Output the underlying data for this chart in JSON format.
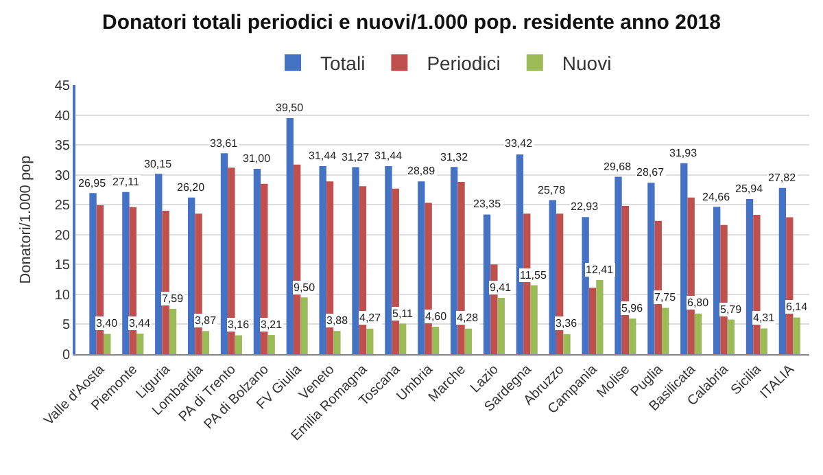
{
  "chart_data": {
    "type": "bar",
    "title": "Donatori totali periodici e nuovi/1.000 pop. residente anno 2018",
    "ylabel": "Donatori/1.000 pop",
    "categories": [
      "Valle d'Aosta",
      "Piemonte",
      "Liguria",
      "Lombardia",
      "PA di Trento",
      "PA di Bolzano",
      "FV Giulia",
      "Veneto",
      "Emilia Romagna",
      "Toscana",
      "Umbria",
      "Marche",
      "Lazio",
      "Sardegna",
      "Abruzzo",
      "Campania",
      "Molise",
      "Puglia",
      "Basilicata",
      "Calabria",
      "Sicilia",
      "ITALIA"
    ],
    "series": [
      {
        "name": "Totali",
        "color": "#4472c4",
        "values": [
          26.95,
          27.11,
          30.15,
          26.2,
          33.61,
          31.0,
          39.5,
          31.44,
          31.27,
          31.44,
          28.89,
          31.32,
          23.35,
          33.42,
          25.78,
          22.93,
          29.68,
          28.67,
          31.93,
          24.66,
          25.94,
          27.82
        ],
        "value_labels": [
          "26,95",
          "27,11",
          "30,15",
          "26,20",
          "33,61",
          "31,00",
          "39,50",
          "31,44",
          "31,27",
          "31,44",
          "28,89",
          "31,32",
          "23,35",
          "33,42",
          "25,78",
          "22,93",
          "29,68",
          "28,67",
          "31,93",
          "24,66",
          "25,94",
          "27,82"
        ]
      },
      {
        "name": "Periodici",
        "color": "#c0504d",
        "values": [
          24.9,
          24.6,
          24.0,
          23.5,
          31.2,
          28.5,
          31.7,
          28.9,
          28.1,
          27.7,
          25.3,
          28.8,
          15.0,
          23.5,
          23.5,
          11.1,
          24.8,
          22.3,
          26.2,
          21.6,
          23.3,
          22.9
        ]
      },
      {
        "name": "Nuovi",
        "color": "#9bbb59",
        "values": [
          3.4,
          3.44,
          7.59,
          3.87,
          3.16,
          3.21,
          9.5,
          3.88,
          4.27,
          5.11,
          4.6,
          4.28,
          9.41,
          11.55,
          3.36,
          12.41,
          5.96,
          7.75,
          6.8,
          5.79,
          4.31,
          6.14
        ],
        "value_labels": [
          "3,40",
          "3,44",
          "7,59",
          "3,87",
          "3,16",
          "3,21",
          "9,50",
          "3,88",
          "4,27",
          "5,11",
          "4,60",
          "4,28",
          "9,41",
          "11,55",
          "3,36",
          "12,41",
          "5,96",
          "7,75",
          "6,80",
          "5,79",
          "4,31",
          "6,14"
        ]
      }
    ],
    "ylim": [
      0,
      45
    ],
    "yticks": [
      0,
      5,
      10,
      15,
      20,
      25,
      30,
      35,
      40,
      45
    ],
    "grid": "y",
    "legend": "top"
  }
}
